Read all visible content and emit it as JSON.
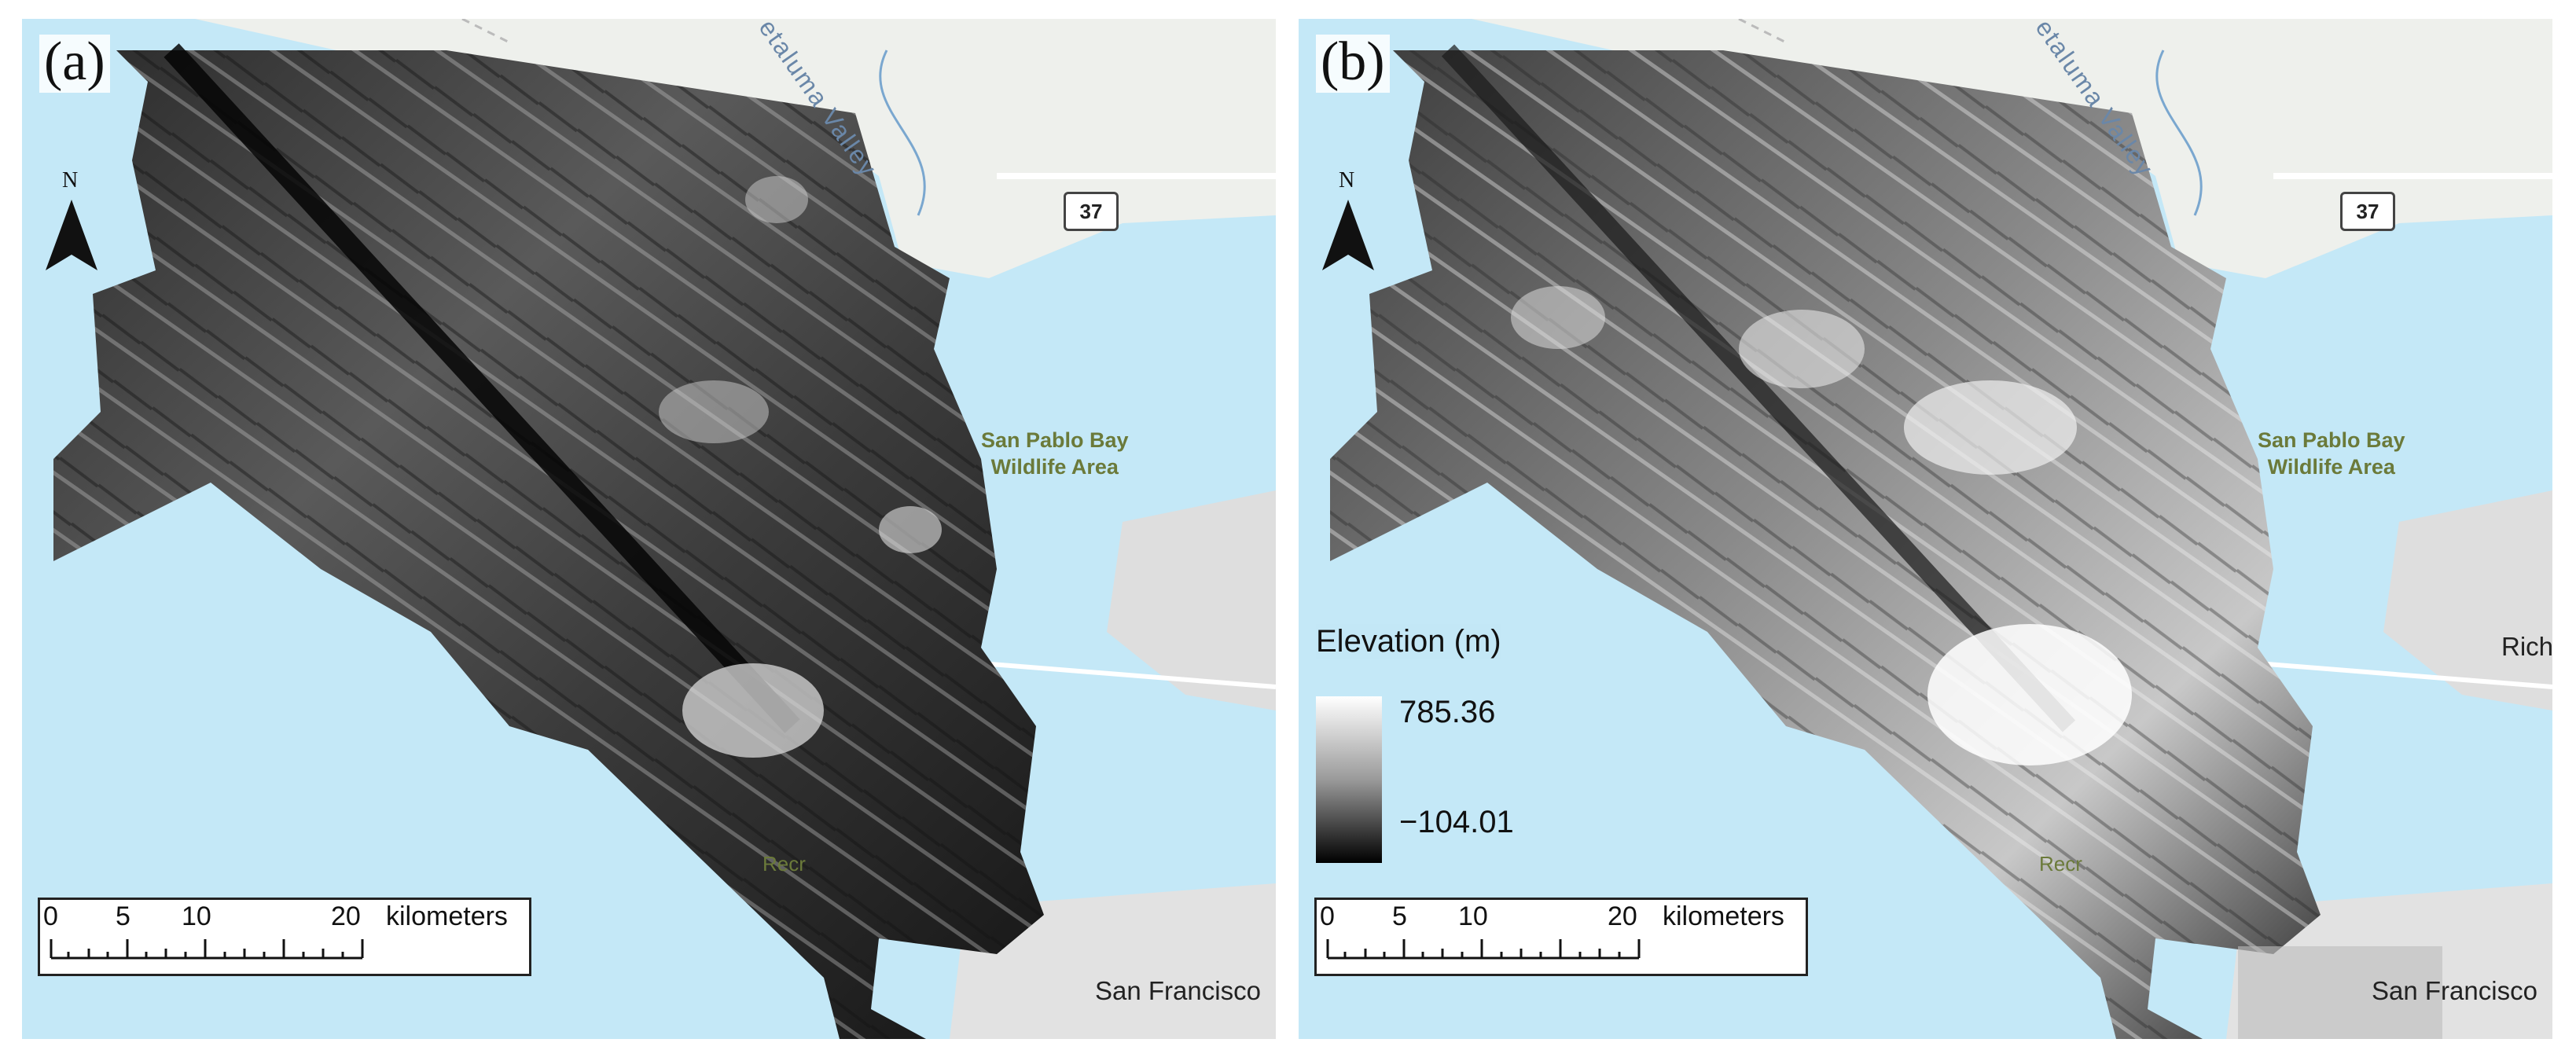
{
  "panels": [
    {
      "id": "a",
      "label": "(a)",
      "north_label": "N",
      "places": {
        "bay": "San Pablo Bay\nWildlife Area",
        "city_sf": "San Francisco",
        "city_rich": "",
        "rec": "Recr",
        "valley": "etaluma Valley",
        "highway": "37"
      },
      "scale": {
        "ticks": [
          "0",
          "5",
          "10",
          "20"
        ],
        "unit": "kilometers"
      }
    },
    {
      "id": "b",
      "label": "(b)",
      "north_label": "N",
      "places": {
        "bay": "San Pablo Bay\nWildlife Area",
        "city_sf": "San Francisco",
        "city_rich": "Rich",
        "rec": "Recr",
        "valley": "etaluma Valley",
        "highway": "37"
      },
      "scale": {
        "ticks": [
          "0",
          "5",
          "10",
          "20"
        ],
        "unit": "kilometers"
      },
      "legend": {
        "title": "Elevation (m)",
        "max": "785.36",
        "min": "−104.01"
      }
    }
  ],
  "colors": {
    "water": "#c4e8f7",
    "land": "#eef0ec",
    "urban": "#dcdcdc",
    "road": "#ffffff"
  }
}
